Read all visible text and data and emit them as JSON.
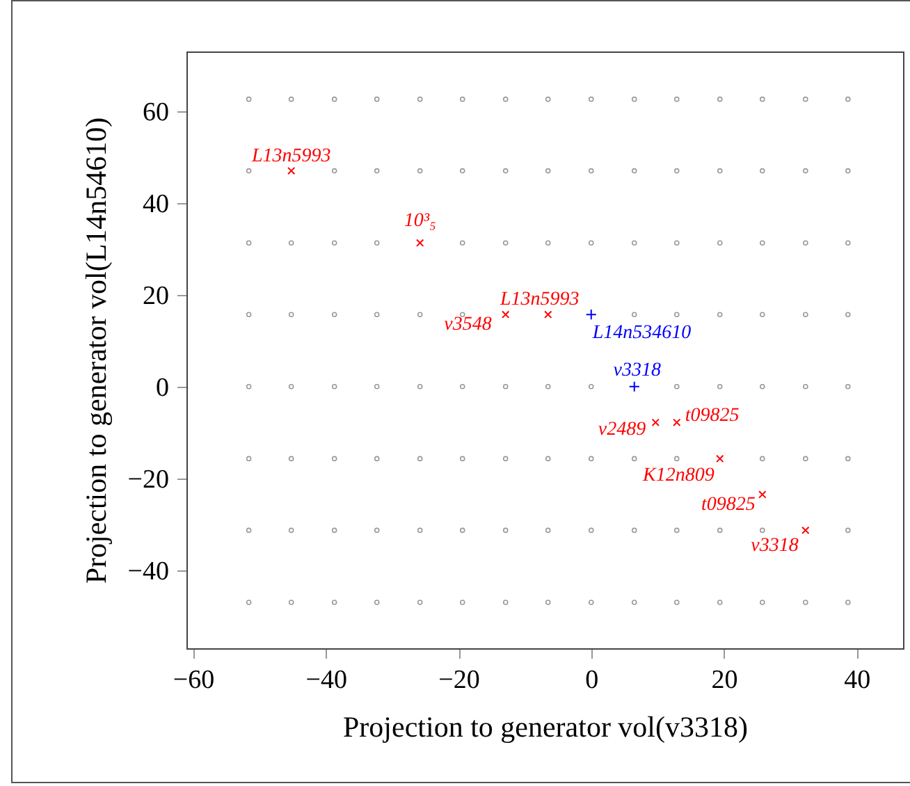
{
  "chart_data": {
    "type": "scatter",
    "xlabel": "Projection to generator vol(v3318)",
    "ylabel": "Projection to generator vol(L14n54610)",
    "xlim": [
      -61,
      47
    ],
    "ylim": [
      -57,
      73
    ],
    "xticks": [
      -60,
      -40,
      -20,
      0,
      20,
      40
    ],
    "yticks": [
      -40,
      -20,
      0,
      20,
      40,
      60
    ],
    "grid": false,
    "series": [
      {
        "color": "#999999",
        "marker": "circle",
        "x": [
          -51.6,
          -45.2,
          -38.7,
          -32.3,
          -25.8,
          -19.4,
          -12.9,
          -6.5,
          0,
          6.5,
          12.9,
          19.4,
          25.8,
          32.3,
          38.7,
          -51.6,
          -45.2,
          -38.7,
          -32.3,
          -25.8,
          -19.4,
          -12.9,
          -6.5,
          0,
          6.5,
          12.9,
          19.4,
          25.8,
          32.3,
          38.7,
          -51.6,
          -45.2,
          -38.7,
          -32.3,
          -25.8,
          -19.4,
          -12.9,
          -6.5,
          0,
          6.5,
          12.9,
          19.4,
          25.8,
          32.3,
          38.7,
          -51.6,
          -45.2,
          -38.7,
          -32.3,
          -25.8,
          -19.4,
          -12.9,
          -6.5,
          0,
          6.5,
          12.9,
          19.4,
          25.8,
          32.3,
          38.7,
          -51.6,
          -45.2,
          -38.7,
          -32.3,
          -25.8,
          -19.4,
          -12.9,
          -6.5,
          0,
          6.5,
          12.9,
          19.4,
          25.8,
          32.3,
          38.7,
          -51.6,
          -45.2,
          -38.7,
          -32.3,
          -25.8,
          -19.4,
          -12.9,
          -6.5,
          0,
          6.5,
          12.9,
          19.4,
          25.8,
          32.3,
          38.7,
          -51.6,
          -45.2,
          -38.7,
          -32.3,
          -25.8,
          -19.4,
          -12.9,
          -6.5,
          0,
          6.5,
          12.9,
          19.4,
          25.8,
          32.3,
          38.7,
          -51.6,
          -45.2,
          -38.7,
          -32.3,
          -25.8,
          -19.4,
          -12.9,
          -6.5,
          0,
          6.5,
          12.9,
          19.4,
          25.8,
          32.3,
          38.7
        ],
        "values": [
          62.6,
          62.6,
          62.6,
          62.6,
          62.6,
          62.6,
          62.6,
          62.6,
          62.6,
          62.6,
          62.6,
          62.6,
          62.6,
          62.6,
          62.6,
          47,
          null,
          47,
          47,
          47,
          47,
          47,
          47,
          47,
          47,
          47,
          47,
          47,
          47,
          47,
          31.3,
          31.3,
          31.3,
          31.3,
          null,
          31.3,
          31.3,
          31.3,
          31.3,
          31.3,
          31.3,
          31.3,
          31.3,
          31.3,
          31.3,
          15.7,
          15.7,
          15.7,
          15.7,
          15.7,
          15.7,
          null,
          null,
          null,
          15.7,
          15.7,
          15.7,
          15.7,
          15.7,
          15.7,
          0,
          0,
          0,
          0,
          0,
          0,
          0,
          0,
          0,
          null,
          0,
          0,
          0,
          0,
          0,
          -15.7,
          -15.7,
          -15.7,
          -15.7,
          -15.7,
          -15.7,
          -15.7,
          -15.7,
          -15.7,
          -15.7,
          -15.7,
          null,
          -15.7,
          -15.7,
          -15.7,
          -31.3,
          -31.3,
          -31.3,
          -31.3,
          -31.3,
          -31.3,
          -31.3,
          -31.3,
          -31.3,
          -31.3,
          -31.3,
          -31.3,
          -31.3,
          null,
          -31.3,
          -47,
          -47,
          -47,
          -47,
          -47,
          -47,
          -47,
          -47,
          -47,
          -47,
          -47,
          -47,
          -47,
          -47,
          -47
        ]
      },
      {
        "color": "#ff0000",
        "marker": "x",
        "x": [
          -45.2,
          -25.8,
          -12.9,
          -6.5,
          9.7,
          12.9,
          19.4,
          25.8,
          32.3
        ],
        "values": [
          47,
          31.3,
          15.7,
          15.7,
          -7.8,
          -7.8,
          -15.7,
          -23.5,
          -31.3
        ]
      },
      {
        "color": "#0000ff",
        "marker": "cross",
        "x": [
          0,
          6.5
        ],
        "values": [
          15.7,
          0
        ]
      }
    ],
    "annotations": [
      {
        "text": "L13n5993",
        "x": -45.2,
        "y": 47
      },
      {
        "text": "10³₅",
        "x": -25.8,
        "y": 31.3
      },
      {
        "text": "v3548",
        "x": -12.9,
        "y": 15.7
      },
      {
        "text": "L13n5993",
        "x": -6.5,
        "y": 15.7
      },
      {
        "text": "L14n534610",
        "x": 0,
        "y": 15.7
      },
      {
        "text": "v3318",
        "x": 6.5,
        "y": 0
      },
      {
        "text": "v2489",
        "x": 9.7,
        "y": -7.8
      },
      {
        "text": "t09825",
        "x": 12.9,
        "y": -7.8
      },
      {
        "text": "K12n809",
        "x": 19.4,
        "y": -15.7
      },
      {
        "text": "t09825",
        "x": 25.8,
        "y": -23.5
      },
      {
        "text": "v3318",
        "x": 32.3,
        "y": -31.3
      }
    ]
  }
}
